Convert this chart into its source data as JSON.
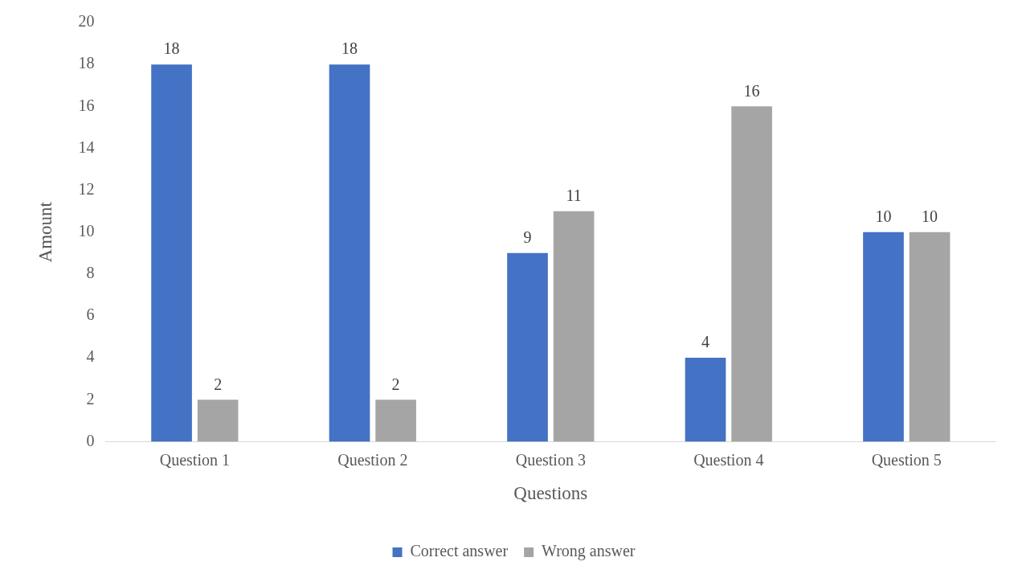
{
  "chart_data": {
    "type": "bar",
    "xlabel": "Questions",
    "ylabel": "Amount",
    "categories": [
      "Question 1",
      "Question 2",
      "Question 3",
      "Question 4",
      "Question 5"
    ],
    "series": [
      {
        "name": "Correct answer",
        "color": "#4472c4",
        "values": [
          18,
          18,
          9,
          4,
          10
        ]
      },
      {
        "name": "Wrong answer",
        "color": "#a5a5a5",
        "values": [
          2,
          2,
          11,
          16,
          10
        ]
      }
    ],
    "ylim": [
      0,
      20
    ],
    "yticks": [
      0,
      2,
      4,
      6,
      8,
      10,
      12,
      14,
      16,
      18,
      20
    ],
    "grid": false,
    "legend": "bottom",
    "data_labels": true
  }
}
